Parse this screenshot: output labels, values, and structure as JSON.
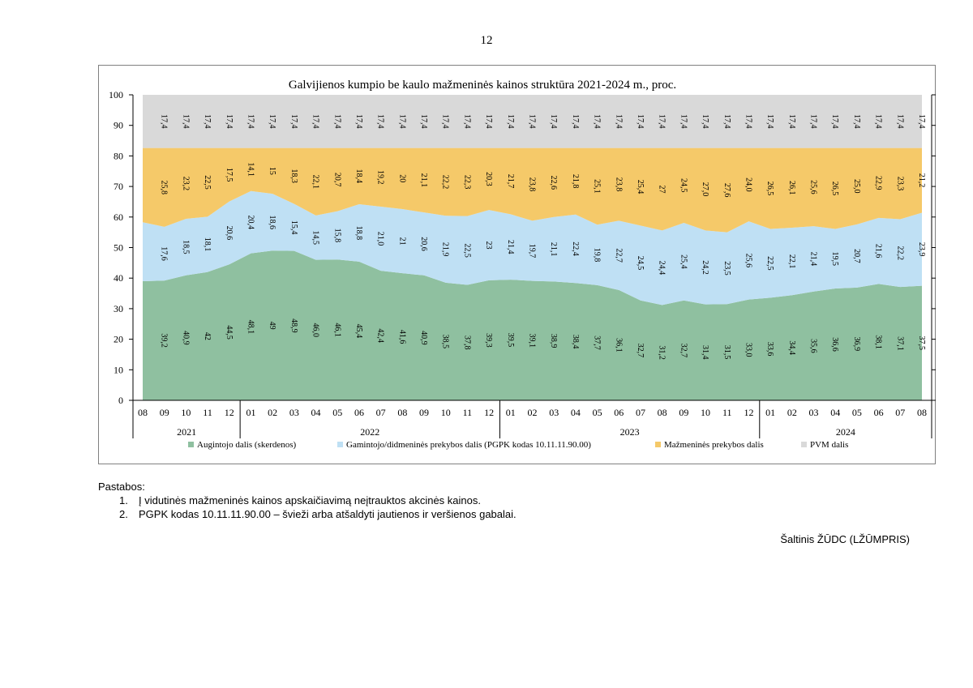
{
  "page": {
    "number": "12"
  },
  "notes": {
    "heading": "Pastabos:",
    "items": [
      {
        "num": "1.",
        "text": "Į vidutinės mažmeninės kainos apskaičiavimą neįtrauktos akcinės kainos."
      },
      {
        "num": "2.",
        "text": "PGPK kodas 10.11.11.90.00 – švieži arba atšaldyti jautienos ir veršienos gabalai."
      }
    ]
  },
  "source": "Šaltinis ŽŪDC (LŽŪMPRIS)",
  "colors": {
    "augintojo": "#8fc0a0",
    "gamintojo": "#bfe0f4",
    "mazmenines": "#f5c969",
    "pvm": "#d9d9d9"
  },
  "chart_data": {
    "type": "area",
    "stacked": true,
    "title": "Galvijienos kumpio be kaulo mažmeninės kainos struktūra 2021-2024 m., proc.",
    "ylim": [
      0,
      100
    ],
    "yticks": [
      0,
      10,
      20,
      30,
      40,
      50,
      60,
      70,
      80,
      90,
      100
    ],
    "categories": [
      "08",
      "09",
      "10",
      "11",
      "12",
      "01",
      "02",
      "03",
      "04",
      "05",
      "06",
      "07",
      "08",
      "09",
      "10",
      "11",
      "12",
      "01",
      "02",
      "03",
      "04",
      "05",
      "06",
      "07",
      "08",
      "09",
      "10",
      "11",
      "12",
      "01",
      "02",
      "03",
      "04",
      "05",
      "06",
      "07",
      "08"
    ],
    "year_groups": [
      {
        "label": "2021",
        "start": 0,
        "end": 4
      },
      {
        "label": "2022",
        "start": 5,
        "end": 16
      },
      {
        "label": "2023",
        "start": 17,
        "end": 28
      },
      {
        "label": "2024",
        "start": 29,
        "end": 36
      }
    ],
    "series": [
      {
        "name": "Augintojo dalis (skerdenos)",
        "values": [
          39.0,
          39.2,
          40.9,
          42,
          44.5,
          48.1,
          49,
          48.9,
          46.0,
          46.1,
          45.4,
          42.4,
          41.6,
          40.9,
          38.5,
          37.8,
          39.3,
          39.5,
          39.1,
          38.9,
          38.4,
          37.7,
          36.1,
          32.7,
          31.2,
          32.7,
          31.4,
          31.5,
          33.0,
          33.6,
          34.4,
          35.6,
          36.6,
          36.9,
          38.1,
          37.1,
          37.5
        ],
        "labels": [
          "",
          "39,2",
          "40,9",
          "42",
          "44,5",
          "48,1",
          "49",
          "48,9",
          "46,0",
          "46,1",
          "45,4",
          "42,4",
          "41,6",
          "40,9",
          "38,5",
          "37,8",
          "39,3",
          "39,5",
          "39,1",
          "38,9",
          "38,4",
          "37,7",
          "36,1",
          "32,7",
          "31,2",
          "32,7",
          "31,4",
          "31,5",
          "33,0",
          "33,6",
          "34,4",
          "35,6",
          "36,6",
          "36,9",
          "38,1",
          "37,1",
          "37,5"
        ]
      },
      {
        "name": "Gamintojo/didmeninės prekybos dalis (PGPK kodas 10.11.11.90.00)",
        "values": [
          19.3,
          17.6,
          18.5,
          18.1,
          20.6,
          20.4,
          18.6,
          15.4,
          14.5,
          15.8,
          18.8,
          21.0,
          21,
          20.6,
          21.9,
          22.5,
          23,
          21.4,
          19.7,
          21.1,
          22.4,
          19.8,
          22.7,
          24.5,
          24.4,
          25.4,
          24.2,
          23.5,
          25.6,
          22.5,
          22.1,
          21.4,
          19.5,
          20.7,
          21.6,
          22.2,
          23.9
        ],
        "labels": [
          "",
          "17,6",
          "18,5",
          "18,1",
          "20,6",
          "20,4",
          "18,6",
          "15,4",
          "14,5",
          "15,8",
          "18,8",
          "21,0",
          "21",
          "20,6",
          "21,9",
          "22,5",
          "23",
          "21,4",
          "19,7",
          "21,1",
          "22,4",
          "19,8",
          "22,7",
          "24,5",
          "24,4",
          "25,4",
          "24,2",
          "23,5",
          "25,6",
          "22,5",
          "22,1",
          "21,4",
          "19,5",
          "20,7",
          "21,6",
          "22,2",
          "23,9"
        ]
      },
      {
        "name": "Mažmeninės prekybos dalis",
        "values": [
          24.3,
          25.8,
          23.2,
          22.5,
          17.5,
          14.1,
          15,
          18.3,
          22.1,
          20.7,
          18.4,
          19.2,
          20,
          21.1,
          22.2,
          22.3,
          20.3,
          21.7,
          23.8,
          22.6,
          21.8,
          25.1,
          23.8,
          25.4,
          27,
          24.5,
          27.0,
          27.6,
          24.0,
          26.5,
          26.1,
          25.6,
          26.5,
          25.0,
          22.9,
          23.3,
          21.2
        ],
        "labels": [
          "",
          "25,8",
          "23,2",
          "22,5",
          "17,5",
          "14,1",
          "15",
          "18,3",
          "22,1",
          "20,7",
          "18,4",
          "19,2",
          "20",
          "21,1",
          "22,2",
          "22,3",
          "20,3",
          "21,7",
          "23,8",
          "22,6",
          "21,8",
          "25,1",
          "23,8",
          "25,4",
          "27",
          "24,5",
          "27,0",
          "27,6",
          "24,0",
          "26,5",
          "26,1",
          "25,6",
          "26,5",
          "25,0",
          "22,9",
          "23,3",
          "21,2"
        ]
      },
      {
        "name": "PVM dalis",
        "values": [
          17.4,
          17.4,
          17.4,
          17.4,
          17.4,
          17.4,
          17.4,
          17.4,
          17.4,
          17.4,
          17.4,
          17.4,
          17.4,
          17.4,
          17.4,
          17.4,
          17.4,
          17.4,
          17.4,
          17.4,
          17.4,
          17.4,
          17.4,
          17.4,
          17.4,
          17.4,
          17.4,
          17.4,
          17.4,
          17.4,
          17.4,
          17.4,
          17.4,
          17.4,
          17.4,
          17.4,
          17.4
        ],
        "labels": [
          "",
          "17,4",
          "17,4",
          "17,4",
          "17,4",
          "17,4",
          "17,4",
          "17,4",
          "17,4",
          "17,4",
          "17,4",
          "17,4",
          "17,4",
          "17,4",
          "17,4",
          "17,4",
          "17,4",
          "17,4",
          "17,4",
          "17,4",
          "17,4",
          "17,4",
          "17,4",
          "17,4",
          "17,4",
          "17,4",
          "17,4",
          "17,4",
          "17,4",
          "17,4",
          "17,4",
          "17,4",
          "17,4",
          "17,4",
          "17,4",
          "17,4",
          "17,4"
        ]
      }
    ],
    "legend_position": "bottom",
    "grid": false
  }
}
